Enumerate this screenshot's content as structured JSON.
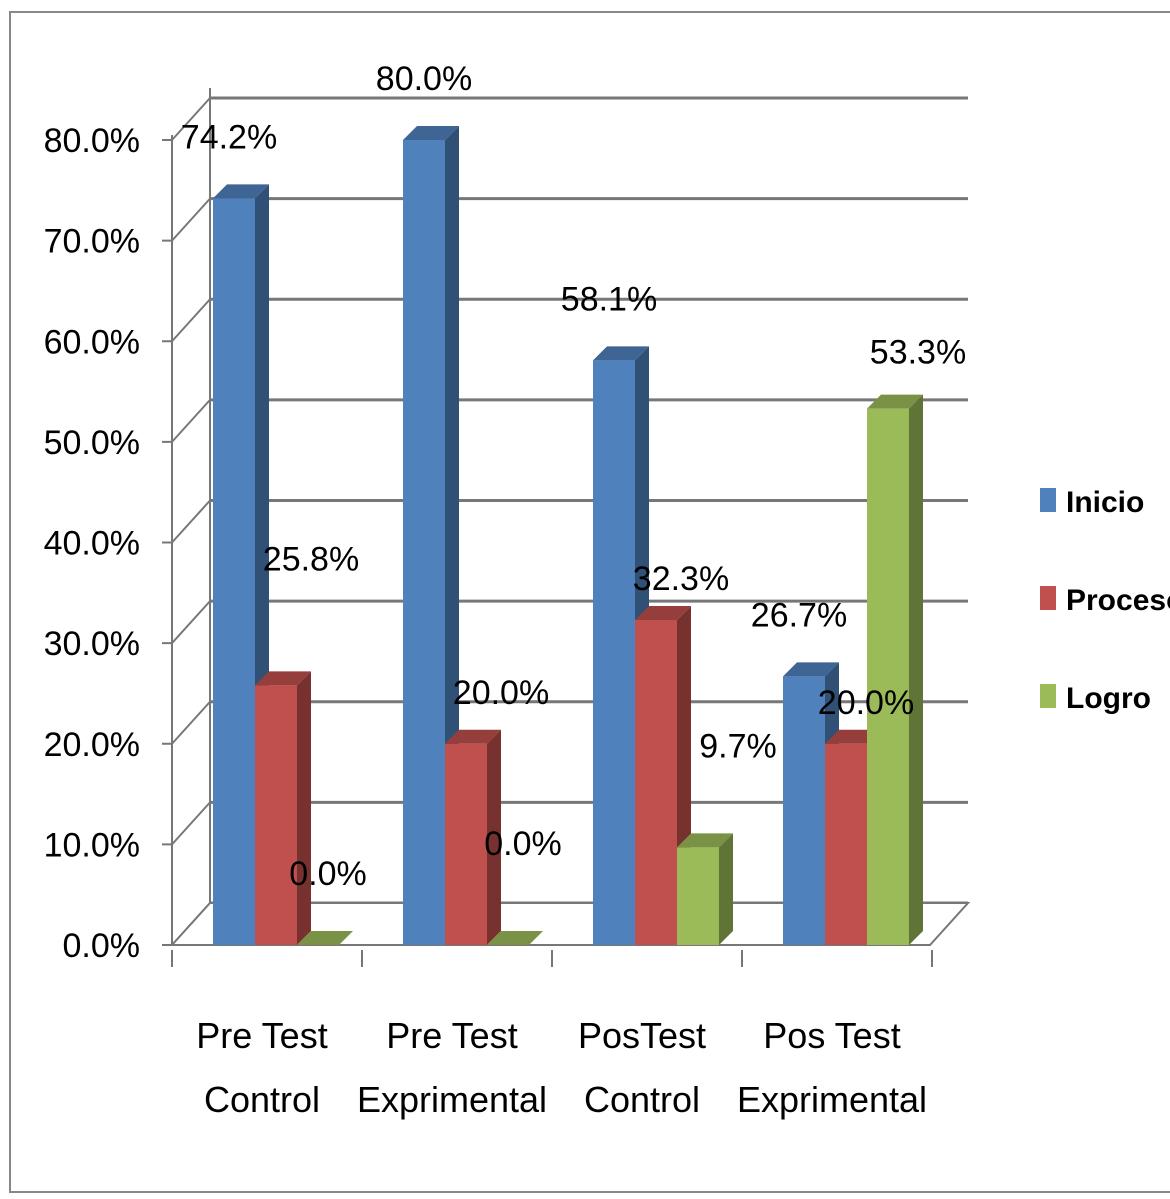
{
  "chart_data": {
    "type": "bar",
    "title": "",
    "xlabel": "",
    "ylabel": "",
    "categories": [
      [
        "Pre Test",
        "Control"
      ],
      [
        "Pre Test",
        "Exprimental"
      ],
      [
        "PosTest",
        "Control"
      ],
      [
        "Pos Test",
        "Exprimental"
      ]
    ],
    "series": [
      {
        "name": "Inicio",
        "color": "#4F81BD",
        "values": [
          74.2,
          80.0,
          58.1,
          26.7
        ]
      },
      {
        "name": "Proceso",
        "color": "#C0504D",
        "values": [
          25.8,
          20.0,
          32.3,
          20.0
        ]
      },
      {
        "name": "Logro",
        "color": "#9BBB59",
        "values": [
          0.0,
          0.0,
          9.7,
          53.3
        ]
      }
    ],
    "ylim": [
      0,
      80
    ],
    "y_ticks": [
      "0.0%",
      "10.0%",
      "20.0%",
      "30.0%",
      "40.0%",
      "50.0%",
      "60.0%",
      "70.0%",
      "80.0%"
    ],
    "data_labels": [
      [
        "74.2%",
        "80.0%",
        "58.1%",
        "26.7%"
      ],
      [
        "25.8%",
        "20.0%",
        "32.3%",
        "20.0%"
      ],
      [
        "0.0%",
        "0.0%",
        "9.7%",
        "53.3%"
      ]
    ],
    "grid": true,
    "legend_position": "right",
    "style": "3d-clustered-column"
  }
}
